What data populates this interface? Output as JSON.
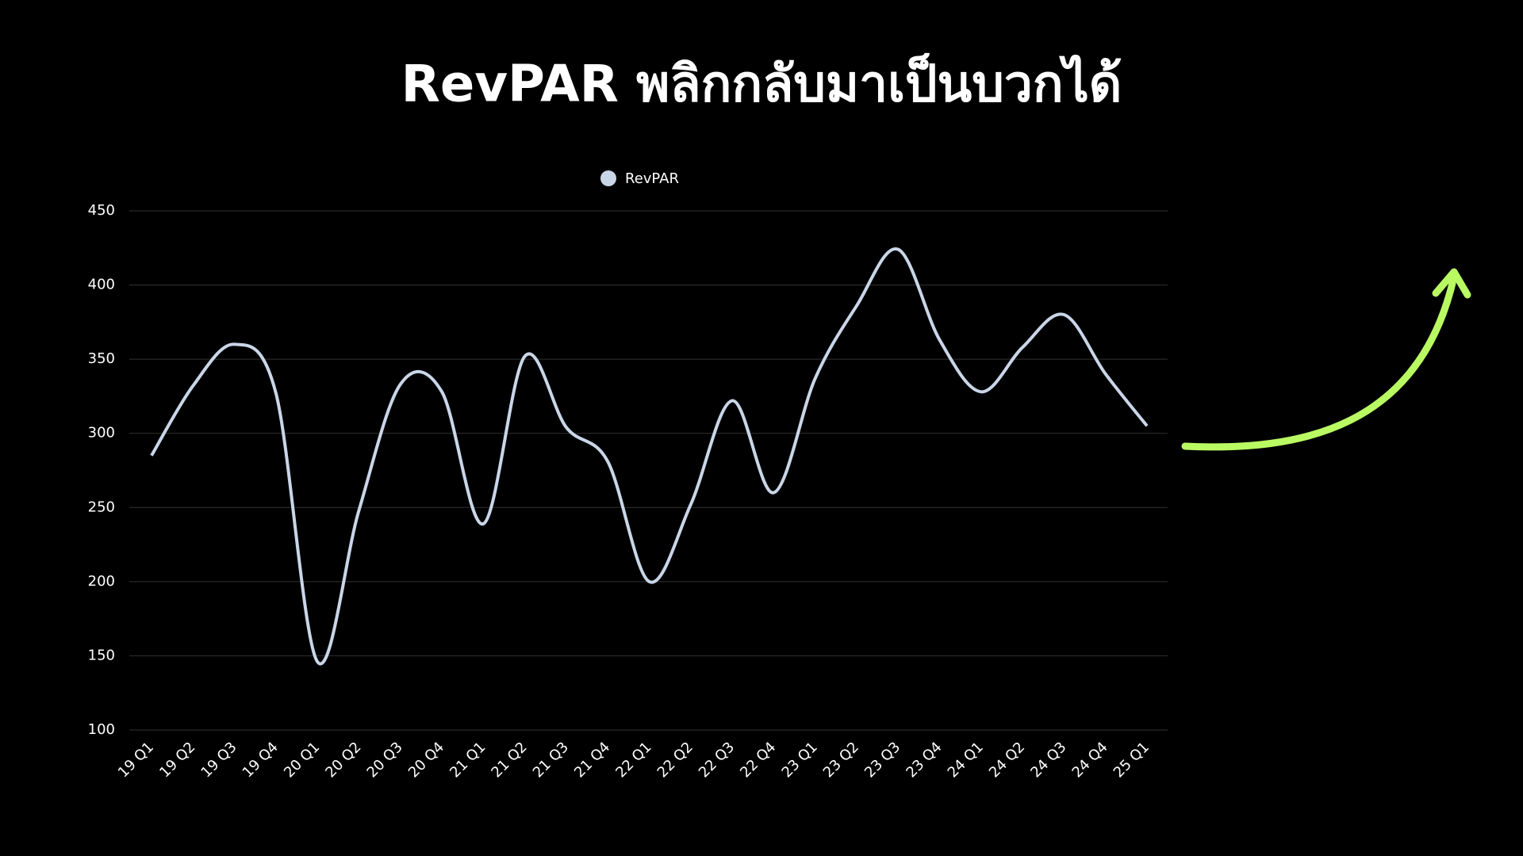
{
  "chart_data": {
    "type": "line",
    "title": "RevPAR พลิกกลับมาเป็นบวกได้",
    "categories": [
      "19 Q1",
      "19 Q2",
      "19 Q3",
      "19 Q4",
      "20 Q1",
      "20 Q2",
      "20 Q3",
      "20 Q4",
      "21 Q1",
      "21 Q2",
      "21 Q3",
      "21 Q4",
      "22 Q1",
      "22 Q2",
      "22 Q3",
      "22 Q4",
      "23 Q1",
      "23 Q2",
      "23 Q3",
      "23 Q4",
      "24 Q1",
      "24 Q2",
      "24 Q3",
      "24 Q4",
      "25 Q1"
    ],
    "series": [
      {
        "name": "RevPAR",
        "color": "#c9d6e8",
        "values": [
          285,
          332,
          360,
          327,
          146,
          248,
          333,
          328,
          239,
          352,
          304,
          281,
          200,
          252,
          322,
          260,
          337,
          386,
          424,
          363,
          328,
          358,
          380,
          340,
          305
        ]
      }
    ],
    "ylim": [
      100,
      450
    ],
    "yticks": [
      100,
      150,
      200,
      250,
      300,
      350,
      400,
      450
    ],
    "grid": true
  }
}
